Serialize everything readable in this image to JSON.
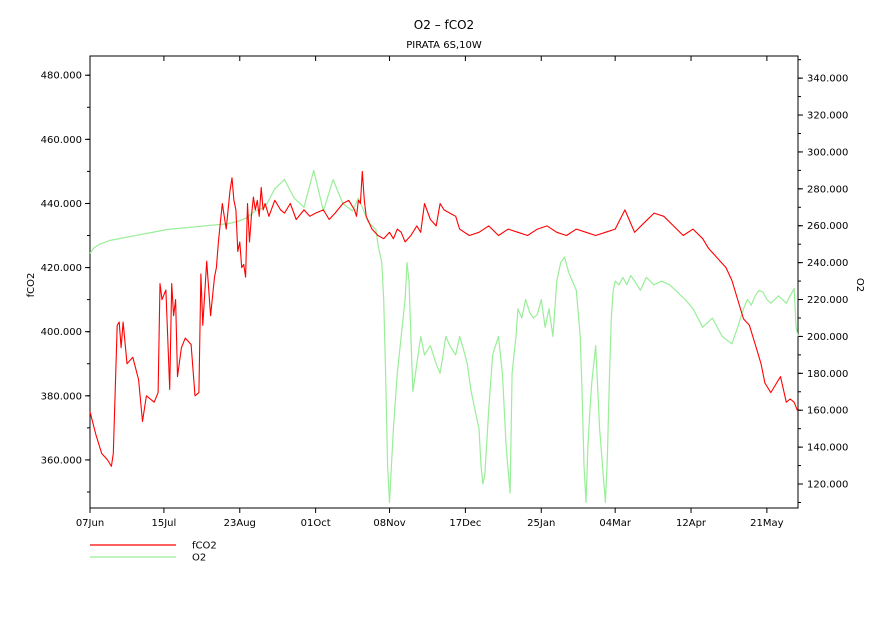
{
  "chart_data": {
    "type": "line",
    "title": "O2 – fCO2",
    "subtitle": "PIRATA 6S,10W",
    "y_left_label": "fCO2",
    "y_right_label": "O2",
    "x_tick_labels": [
      "07Jun",
      "15Jul",
      "23Aug",
      "01Oct",
      "08Nov",
      "17Dec",
      "25Jan",
      "04Mar",
      "12Apr",
      "21May"
    ],
    "x_tick_days": [
      0,
      38,
      77,
      116,
      154,
      193,
      232,
      270,
      309,
      348
    ],
    "x_range_days": [
      0,
      364
    ],
    "y_left_range": [
      345,
      486
    ],
    "y_left_ticks": [
      "360.000",
      "380.000",
      "400.000",
      "420.000",
      "440.000",
      "460.000",
      "480.000"
    ],
    "y_right_range": [
      107,
      352
    ],
    "y_right_ticks": [
      "120.000",
      "140.000",
      "160.000",
      "180.000",
      "200.000",
      "220.000",
      "240.000",
      "260.000",
      "280.000",
      "300.000",
      "320.000",
      "340.000"
    ],
    "legend": [
      "fCO2",
      "O2"
    ],
    "colors": {
      "fCO2": "#ff0000",
      "O2": "#99ee99"
    },
    "series": [
      {
        "name": "fCO2",
        "axis": "left",
        "x": [
          0,
          3,
          6,
          9,
          11,
          12,
          14,
          15,
          16,
          17,
          19,
          22,
          25,
          27,
          29,
          33,
          35,
          36,
          37,
          39,
          41,
          42,
          43,
          44,
          45,
          47,
          49,
          52,
          54,
          56,
          57,
          58,
          60,
          62,
          64,
          65,
          66,
          68,
          70,
          72,
          73,
          74,
          75,
          76,
          77,
          78,
          79,
          80,
          81,
          82,
          83,
          84,
          85,
          86,
          87,
          88,
          89,
          90,
          92,
          95,
          98,
          100,
          103,
          106,
          110,
          113,
          116,
          120,
          123,
          126,
          130,
          133,
          136,
          137,
          138,
          139,
          140,
          141,
          142,
          145,
          148,
          151,
          154,
          156,
          158,
          160,
          162,
          165,
          168,
          170,
          172,
          175,
          178,
          180,
          182,
          185,
          188,
          190,
          195,
          200,
          205,
          210,
          215,
          220,
          225,
          230,
          235,
          240,
          245,
          250,
          255,
          260,
          265,
          270,
          275,
          280,
          285,
          290,
          295,
          300,
          305,
          310,
          315,
          318,
          321,
          324,
          327,
          330,
          333,
          336,
          339,
          341,
          343,
          345,
          347,
          350,
          353,
          355,
          358,
          360,
          362,
          364
        ],
        "y": [
          375,
          368,
          362,
          360,
          358,
          362,
          402,
          403,
          395,
          403,
          390,
          392,
          385,
          372,
          380,
          378,
          381,
          415,
          410,
          413,
          382,
          415,
          405,
          410,
          386,
          395,
          398,
          396,
          380,
          381,
          418,
          402,
          422,
          405,
          417,
          420,
          428,
          440,
          432,
          444,
          448,
          441,
          438,
          425,
          428,
          420,
          421,
          417,
          440,
          428,
          436,
          442,
          438,
          441,
          436,
          445,
          438,
          440,
          436,
          441,
          438,
          437,
          440,
          435,
          438,
          436,
          437,
          438,
          435,
          437,
          440,
          441,
          438,
          436,
          441,
          440,
          450,
          441,
          436,
          432,
          430,
          429,
          431,
          429,
          432,
          431,
          428,
          430,
          433,
          431,
          440,
          435,
          433,
          440,
          438,
          437,
          436,
          432,
          430,
          431,
          433,
          430,
          432,
          431,
          430,
          432,
          433,
          431,
          430,
          432,
          431,
          430,
          431,
          432,
          438,
          431,
          434,
          437,
          436,
          433,
          430,
          432,
          429,
          426,
          424,
          422,
          420,
          416,
          410,
          404,
          402,
          398,
          394,
          390,
          384,
          381,
          384,
          386,
          378,
          379,
          378,
          375
        ]
      },
      {
        "name": "O2",
        "axis": "right",
        "x": [
          0,
          2,
          5,
          10,
          20,
          30,
          40,
          50,
          60,
          70,
          75,
          80,
          85,
          90,
          95,
          100,
          105,
          110,
          115,
          120,
          125,
          130,
          135,
          138,
          140,
          143,
          145,
          147,
          148,
          150,
          151,
          152,
          153,
          154,
          156,
          158,
          160,
          162,
          163,
          164,
          165,
          166,
          168,
          170,
          172,
          175,
          178,
          180,
          183,
          185,
          188,
          190,
          192,
          194,
          196,
          198,
          200,
          201,
          202,
          203,
          205,
          207,
          210,
          212,
          214,
          216,
          217,
          218,
          219,
          220,
          222,
          224,
          226,
          228,
          230,
          232,
          234,
          236,
          238,
          240,
          242,
          244,
          246,
          248,
          250,
          252,
          253,
          254,
          255,
          256,
          257,
          258,
          260,
          262,
          265,
          266,
          267,
          268,
          269,
          270,
          272,
          274,
          276,
          278,
          280,
          283,
          286,
          290,
          294,
          298,
          302,
          306,
          310,
          315,
          320,
          325,
          330,
          333,
          336,
          338,
          340,
          342,
          344,
          346,
          348,
          350,
          354,
          358,
          362,
          363,
          364
        ],
        "y": [
          245,
          248,
          250,
          252,
          254,
          256,
          258,
          259,
          260,
          261,
          262,
          264,
          268,
          270,
          280,
          285,
          275,
          270,
          290,
          268,
          285,
          272,
          268,
          275,
          270,
          262,
          260,
          258,
          250,
          240,
          220,
          180,
          130,
          110,
          150,
          180,
          200,
          220,
          240,
          230,
          200,
          170,
          185,
          200,
          190,
          195,
          185,
          180,
          200,
          195,
          190,
          200,
          193,
          185,
          170,
          160,
          150,
          130,
          120,
          125,
          160,
          190,
          200,
          180,
          140,
          115,
          180,
          190,
          200,
          215,
          210,
          220,
          213,
          210,
          212,
          220,
          205,
          215,
          200,
          230,
          240,
          243,
          235,
          230,
          225,
          200,
          170,
          130,
          110,
          140,
          160,
          175,
          195,
          150,
          110,
          135,
          175,
          210,
          225,
          230,
          228,
          232,
          228,
          233,
          230,
          225,
          232,
          228,
          230,
          228,
          224,
          220,
          215,
          205,
          210,
          200,
          196,
          205,
          215,
          220,
          217,
          222,
          225,
          224,
          220,
          218,
          222,
          218,
          226,
          205,
          200
        ]
      }
    ]
  }
}
